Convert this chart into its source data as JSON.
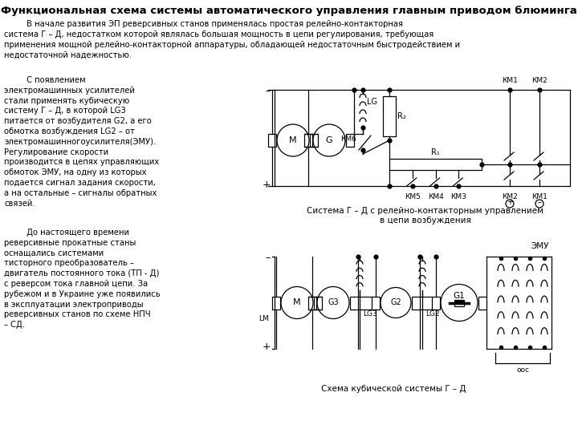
{
  "title": "Функциональная схема системы автоматического управления главным приводом блюминга",
  "title_fontsize": 9.5,
  "body_fontsize": 7.2,
  "background_color": "#ffffff",
  "text_color": "#000000",
  "paragraph1": "         В начале развития ЭП реверсивных станов применялась простая релейно-контакторная\nсистема Г – Д, недостатком которой являлась большая мощность в цепи регулирования, требующая\nприменения мощной релейно-контакторной аппаратуры, обладающей недостаточным быстродействием и\nнедостаточной надежностью.",
  "paragraph2_indent": "         С появлением",
  "paragraph2_rest": "электромашинных усилителей\nстали применять кубическую\nсистему Г – Д, в которой LG3\nпитается от возбудителя G2, а его\nобмотка возбуждения LG2 – от\nэлектромашинногоусилителя(ЭМУ).\nРегулирование скорости\nпроизводится в цепях управляющих\nобмоток ЭМУ, на одну из которых\nподается сигнал задания скорости,\nа на остальные – сигналы обратных\nсвязей.",
  "paragraph3_indent": "         До настоящего времени",
  "paragraph3_rest": "реверсивные прокатные станы\nоснащались системами\nтисторного преобразователь –\nдвигатель постоянного тока (ТП - Д)\nс реверсом тока главной цепи. За\nрубежом и в Украине уже появились\nв эксплуатации электроприводы\nреверсивных станов по схеме НПЧ\n– СД.",
  "label_top1": "Система Г – Д с релейно-контакторным управлением",
  "label_top2": "в цепи возбуждения",
  "label_bot": "Схема кубической системы Г – Д",
  "emu_label": "ЭМУ",
  "ooc_label": "ооc"
}
